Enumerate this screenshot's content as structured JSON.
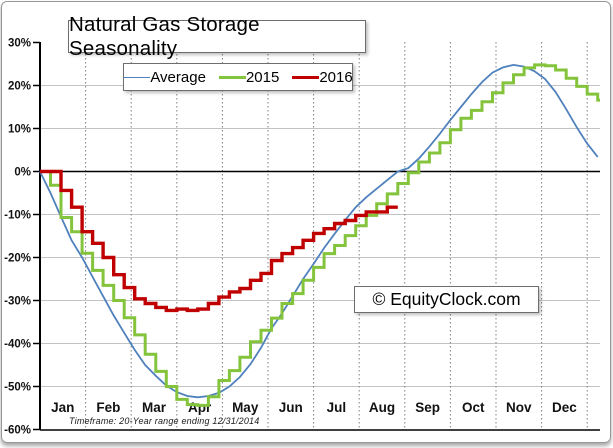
{
  "chart_data": {
    "type": "line",
    "title": "Natural Gas Storage Seasonality",
    "watermark": "© EquityClock.com",
    "footnote": "Timeframe: 20-Year range ending 12/31/2014",
    "legend_position": "top-center",
    "x_axis": {
      "months": [
        "Jan",
        "Feb",
        "Mar",
        "Apr",
        "May",
        "Jun",
        "Jul",
        "Aug",
        "Sep",
        "Oct",
        "Nov",
        "Dec"
      ]
    },
    "y_axis": {
      "tick_labels": [
        "30%",
        "20%",
        "10%",
        "0%",
        "-10%",
        "-20%",
        "-30%",
        "-40%",
        "-50%",
        "-60%"
      ],
      "tick_values": [
        30,
        20,
        10,
        0,
        -10,
        -20,
        -30,
        -40,
        -50,
        -60
      ],
      "ylim": [
        -60,
        30
      ],
      "gridline_values": [
        20,
        10,
        -10,
        -20,
        -30,
        -40,
        -50
      ]
    },
    "grid": {
      "horizontal_solid": true,
      "vertical_dashed_month_boundaries": true
    },
    "colors": {
      "axis": "#000000",
      "h_gridline": "#c3c3c3",
      "v_gridline": "#7d7d7d",
      "month_label": "#111111",
      "ytick_label": "#111111"
    },
    "series": [
      {
        "name": "Average",
        "color": "#4f81bd",
        "style": "smooth",
        "line_width": 1.8,
        "weekly_values": [
          0,
          -5,
          -10.5,
          -16,
          -20,
          -24.5,
          -29,
          -33.5,
          -37.5,
          -41.5,
          -45,
          -47.5,
          -49.8,
          -51.3,
          -52.2,
          -52.5,
          -52.2,
          -51.5,
          -50,
          -47.8,
          -44.8,
          -41,
          -36.5,
          -33,
          -29,
          -25,
          -21.5,
          -17.8,
          -14.5,
          -11.3,
          -8.3,
          -6,
          -4,
          -2,
          0,
          0.8,
          3,
          5.8,
          8.8,
          12,
          15,
          18,
          20.8,
          23,
          24.2,
          24.8,
          24.4,
          23.3,
          21.5,
          18.5,
          14.5,
          10.3,
          6.5,
          3.4
        ]
      },
      {
        "name": "2015",
        "color": "#84c43c",
        "style": "step",
        "line_width": 3,
        "weekly_values": [
          0,
          -3.2,
          -10.7,
          -14,
          -19,
          -23,
          -26.5,
          -30,
          -34,
          -38,
          -42.5,
          -46.5,
          -50,
          -53,
          -54.2,
          -54.4,
          -52.4,
          -48.6,
          -46.3,
          -43.2,
          -39.6,
          -36.9,
          -34.1,
          -30.7,
          -28.4,
          -25.3,
          -22.3,
          -19.1,
          -17.2,
          -14.9,
          -12.6,
          -10.2,
          -7.5,
          -5.2,
          -2.8,
          -0.3,
          2.2,
          4.3,
          6.7,
          9.7,
          12.4,
          14.2,
          16.2,
          18.3,
          20.6,
          22.5,
          24.1,
          24.8,
          24.6,
          23.6,
          21.7,
          19.8,
          18,
          16.6
        ]
      },
      {
        "name": "2016",
        "color": "#c00000",
        "style": "step",
        "line_width": 3.4,
        "weekly_values": [
          0,
          0,
          -4.4,
          -8.3,
          -14,
          -16.7,
          -20,
          -24,
          -27,
          -29.6,
          -30.7,
          -31.6,
          -32.3,
          -32,
          -32.3,
          -32,
          -30.7,
          -29.2,
          -28,
          -27.2,
          -25.3,
          -23.7,
          -20.7,
          -19.1,
          -17.7,
          -16,
          -14.4,
          -13.3,
          -12.1,
          -11.4,
          -10.2,
          -9.4,
          -9.4,
          -8.3
        ]
      }
    ]
  }
}
